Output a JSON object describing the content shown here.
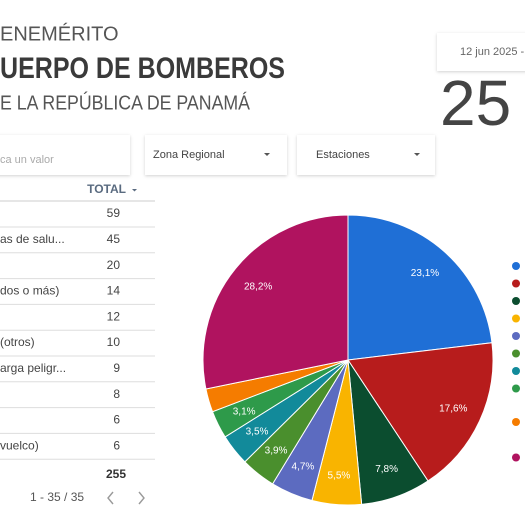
{
  "header": {
    "line1": "ENEMÉRITO",
    "line2": "UERPO DE BOMBEROS",
    "line3": "E LA REPÚBLICA DE PANAMÁ"
  },
  "date": "12 jun 2025 -",
  "scorecard": "25",
  "filters": [
    "ca un valor",
    "Zona Regional",
    "Estaciones"
  ],
  "table": {
    "header": "TOTAL",
    "rows": [
      [
        null,
        59
      ],
      [
        "as de salu...",
        45
      ],
      [
        null,
        20
      ],
      [
        "dos o más)",
        14
      ],
      [
        null,
        12
      ],
      [
        "(otros)",
        10
      ],
      [
        "arga peligr...",
        9
      ],
      [
        null,
        8
      ],
      [
        null,
        6
      ],
      [
        "vuelco)",
        6
      ]
    ],
    "total": 255,
    "pagination": "1 - 35 / 35"
  },
  "pie": {
    "type": "pie",
    "values": [
      23.1,
      17.6,
      7.8,
      5.5,
      4.7,
      3.9,
      3.5,
      3.1,
      2.6,
      28.2
    ],
    "value_labels": [
      "23,1%",
      "17,6%",
      "7,8%",
      "5,5%",
      "4,7%",
      "3,9%",
      "3,5%",
      "3,1%",
      null,
      "28,2%"
    ],
    "colors": [
      "#1f6fd6",
      "#b71c1c",
      "#0b4d2f",
      "#f9b400",
      "#5c6bc0",
      "#4a8f2d",
      "#128a9a",
      "#2e9a4a",
      "#f57c00",
      "#b0135f"
    ]
  }
}
